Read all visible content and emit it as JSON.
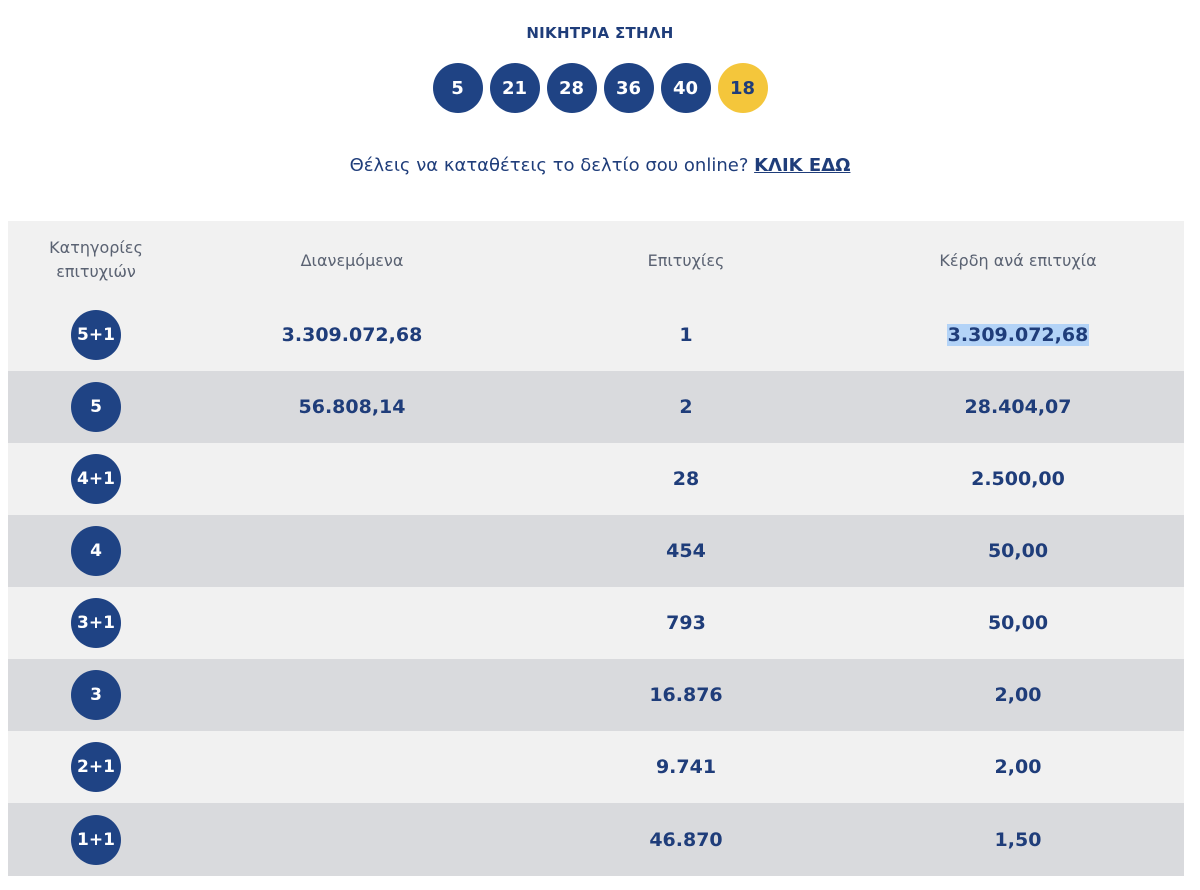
{
  "winning_column": {
    "title": "ΝΙΚΗΤΡΙΑ ΣΤΗΛΗ",
    "numbers": [
      "5",
      "21",
      "28",
      "36",
      "40"
    ],
    "bonus": "18"
  },
  "cta": {
    "text": "Θέλεις να καταθέτεις το δελτίο σου online?",
    "link": "ΚΛΙΚ ΕΔΩ"
  },
  "table": {
    "headers": {
      "category": "Κατηγορίες επιτυχιών",
      "distributed": "Διανεμόμενα",
      "winners": "Επιτυχίες",
      "prize": "Κέρδη ανά επιτυχία"
    },
    "rows": [
      {
        "category": "5+1",
        "distributed": "3.309.072,68",
        "winners": "1",
        "prize": "3.309.072,68"
      },
      {
        "category": "5",
        "distributed": "56.808,14",
        "winners": "2",
        "prize": "28.404,07"
      },
      {
        "category": "4+1",
        "distributed": "",
        "winners": "28",
        "prize": "2.500,00"
      },
      {
        "category": "4",
        "distributed": "",
        "winners": "454",
        "prize": "50,00"
      },
      {
        "category": "3+1",
        "distributed": "",
        "winners": "793",
        "prize": "50,00"
      },
      {
        "category": "3",
        "distributed": "",
        "winners": "16.876",
        "prize": "2,00"
      },
      {
        "category": "2+1",
        "distributed": "",
        "winners": "9.741",
        "prize": "2,00"
      },
      {
        "category": "1+1",
        "distributed": "",
        "winners": "46.870",
        "prize": "1,50"
      }
    ]
  },
  "colors": {
    "navy": "#1f4384",
    "bonus_yellow": "#f4c63b",
    "row_light": "#f1f1f1",
    "row_dark": "#d9dadd",
    "selection_highlight": "#b3d3f7"
  }
}
